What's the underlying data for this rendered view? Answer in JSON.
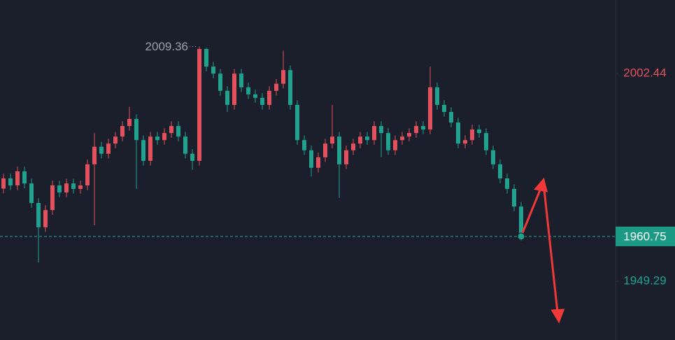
{
  "chart_data": {
    "type": "candlestick",
    "open": [
      1973.0,
      1975.6,
      1973.8,
      1977.4,
      1974.3,
      1969.3,
      1963.1,
      1967.5,
      1973.8,
      1972.0,
      1974.3,
      1972.9,
      1973.8,
      1979.2,
      1983.7,
      1981.9,
      1984.5,
      1986.3,
      1989.0,
      1990.8,
      1985.4,
      1980.1,
      1986.3,
      1985.4,
      1987.2,
      1989.0,
      1986.3,
      1981.9,
      1980.1,
      2008.7,
      2004.2,
      2002.4,
      1998.0,
      1994.4,
      2002.4,
      1998.9,
      1997.1,
      1996.2,
      1994.4,
      1998.0,
      1999.8,
      2003.3,
      1994.4,
      1985.4,
      1982.8,
      1978.3,
      1981.0,
      1984.5,
      1986.3,
      1979.2,
      1982.8,
      1984.5,
      1986.3,
      1985.4,
      1989.0,
      1987.2,
      1982.8,
      1985.4,
      1986.3,
      1987.2,
      1989.0,
      1988.1,
      1998.9,
      1994.4,
      1992.6,
      1989.9,
      1984.5,
      1985.4,
      1988.1,
      1987.2,
      1982.8,
      1979.2,
      1975.6,
      1972.9,
      1968.4
    ],
    "high": [
      1976.8,
      1976.8,
      1978.6,
      1978.6,
      1975.5,
      1970.5,
      1968.7,
      1975.0,
      1975.0,
      1975.5,
      1975.5,
      1975.0,
      1980.4,
      1987.2,
      1984.9,
      1985.7,
      1987.5,
      1990.2,
      1993.9,
      1992.0,
      1986.6,
      1987.5,
      1987.5,
      1988.4,
      1990.2,
      1990.2,
      1987.5,
      1983.1,
      2009.36,
      2009.0,
      2005.4,
      2003.6,
      1999.2,
      2003.6,
      2003.6,
      2000.1,
      1998.3,
      1997.4,
      1999.2,
      2001.0,
      2008.3,
      2004.5,
      1995.6,
      1986.6,
      1984.0,
      1982.2,
      1985.7,
      1994.4,
      1987.5,
      1984.0,
      1985.7,
      1987.5,
      1987.5,
      1990.2,
      1990.2,
      1988.4,
      1986.6,
      1987.5,
      1988.4,
      1990.2,
      1990.2,
      2004.2,
      2000.1,
      1995.6,
      1993.8,
      1991.1,
      1986.6,
      1989.3,
      1989.3,
      1988.4,
      1984.0,
      1980.4,
      1976.8,
      1974.1,
      1969.6
    ],
    "low": [
      1971.8,
      1972.6,
      1972.6,
      1973.1,
      1968.1,
      1954.1,
      1961.9,
      1966.3,
      1970.8,
      1970.8,
      1971.7,
      1971.7,
      1972.6,
      1963.6,
      1980.7,
      1980.7,
      1983.3,
      1985.1,
      1987.8,
      1972.9,
      1978.9,
      1978.9,
      1984.2,
      1984.2,
      1986.0,
      1985.1,
      1980.7,
      1977.8,
      1978.9,
      2003.0,
      2001.2,
      1996.8,
      1992.6,
      1993.2,
      1997.7,
      1995.9,
      1995.0,
      1993.2,
      1993.2,
      1996.8,
      1998.6,
      1993.2,
      1984.2,
      1981.6,
      1976.1,
      1977.1,
      1979.8,
      1983.3,
      1970.6,
      1978.0,
      1981.6,
      1983.3,
      1984.2,
      1984.2,
      1981.0,
      1981.6,
      1981.6,
      1984.2,
      1985.1,
      1986.0,
      1986.9,
      1986.9,
      1993.2,
      1991.4,
      1988.7,
      1983.3,
      1983.3,
      1984.2,
      1986.0,
      1981.6,
      1978.0,
      1974.4,
      1971.7,
      1967.2,
      1959.6
    ],
    "close": [
      1975.6,
      1973.8,
      1977.4,
      1974.3,
      1969.3,
      1963.1,
      1967.5,
      1973.8,
      1972.0,
      1974.3,
      1972.9,
      1973.8,
      1979.2,
      1983.7,
      1981.9,
      1984.5,
      1986.3,
      1989.0,
      1990.8,
      1985.4,
      1980.1,
      1986.3,
      1985.4,
      1987.2,
      1989.0,
      1986.3,
      1981.9,
      1980.1,
      2008.7,
      2004.2,
      2002.4,
      1998.0,
      1994.4,
      2002.4,
      1998.9,
      1997.1,
      1996.2,
      1994.4,
      1998.0,
      1999.8,
      2003.3,
      1994.4,
      1985.4,
      1982.8,
      1978.3,
      1981.0,
      1984.5,
      1986.3,
      1979.2,
      1982.8,
      1984.5,
      1986.3,
      1985.4,
      1989.0,
      1987.2,
      1982.8,
      1985.4,
      1986.3,
      1987.2,
      1989.0,
      1988.1,
      1998.9,
      1994.4,
      1992.6,
      1989.9,
      1984.5,
      1985.4,
      1988.1,
      1987.2,
      1982.8,
      1979.2,
      1975.6,
      1972.9,
      1968.4,
      1960.75
    ],
    "up_color": "#e0525e",
    "down_color": "#22a08e",
    "ylim": [
      1934.26,
      2021.23
    ],
    "yticks": [
      2002.44,
      1949.29
    ],
    "ytick_colors": [
      "#e0525e",
      "#22a08e"
    ]
  }
}
